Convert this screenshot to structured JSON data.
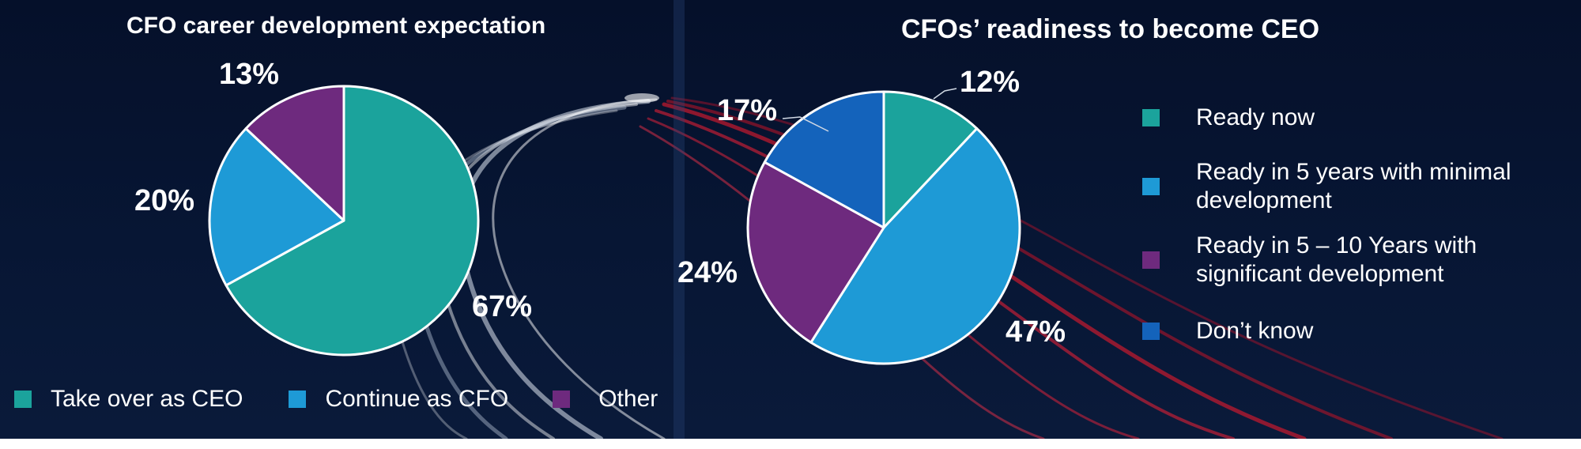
{
  "chart_data": [
    {
      "type": "pie",
      "title": "CFO career development expectation",
      "categories": [
        "Take over as CEO",
        "Continue as CFO",
        "Other"
      ],
      "values": [
        67,
        20,
        13
      ],
      "labels": [
        "67%",
        "20%",
        "13%"
      ],
      "colors": [
        "#1ba39c",
        "#1e9ad6",
        "#6e2a7e"
      ],
      "legend": "bottom"
    },
    {
      "type": "pie",
      "title": "CFOs’ readiness to become CEO",
      "categories": [
        "Ready now",
        "Ready in 5 years with minimal development",
        "Ready in 5 – 10 Years with significant development",
        "Don’t know"
      ],
      "values": [
        12,
        47,
        24,
        17
      ],
      "labels": [
        "12%",
        "47%",
        "24%",
        "17%"
      ],
      "colors": [
        "#1ba39c",
        "#1e9ad6",
        "#6e2a7e",
        "#1463bb"
      ],
      "legend": "right"
    }
  ]
}
